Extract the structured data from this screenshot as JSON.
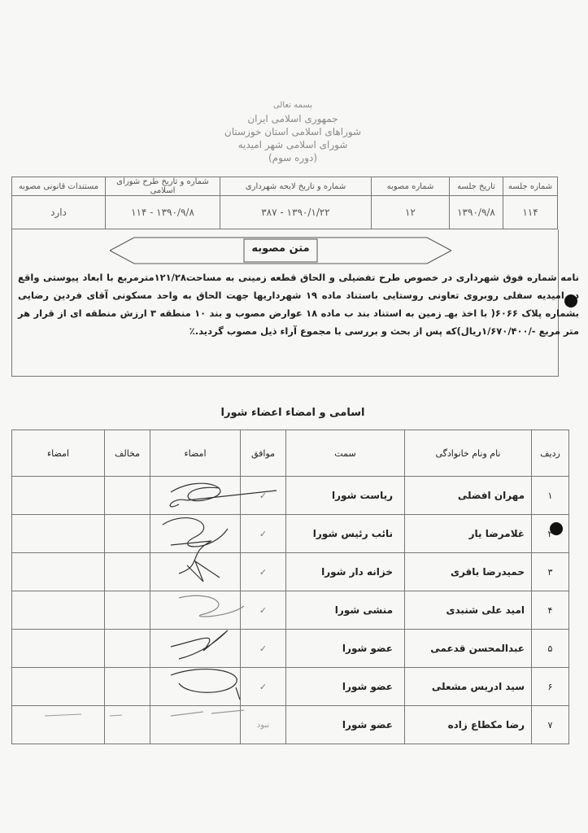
{
  "letterhead": {
    "basmala": "بسمه تعالی",
    "country": "جمهوری اسلامی ایران",
    "province_council": "شوراهای اسلامی استان خوزستان",
    "city_council": "شورای اسلامی شهر امیدیه",
    "term": "(دوره سوم)"
  },
  "session_table": {
    "headers": [
      "شماره جلسه",
      "تاریخ جلسه",
      "شماره مصوبه",
      "شماره و تاریخ لایحه شهرداری",
      "شماره و تاریخ طرح شورای اسلامی",
      "مستندات قانونی مصوبه"
    ],
    "values": [
      "۱۱۴",
      "۱۳۹۰/۹/۸",
      "۱۲",
      "۱۳۹۰/۱/۲۲ - ۳۸۷",
      "۱۳۹۰/۹/۸ - ۱۱۴",
      "دارد"
    ]
  },
  "resolution": {
    "banner": "متن مصوبه",
    "text": "نامه شماره فوق شهرداری در خصوص طرح تفضیلی و الحاق قطعه زمینی به مساحت۱۲۱/۲۸مترمربع با ابعاد پیوستی واقع در امیدیه سفلی روبروی تعاونی روستایی باستناد ماده ۱۹ شهرداریها جهت الحاق به واحد مسکونی آقای فردین رضایی بشماره پلاک ۶۰۶۶( با اخذ بهـ زمین به استناد بند ب ماده ۱۸ عوارض مصوب و بند ۱۰ منطقه ۳ ارزش منطقه ای از قرار هر متر مربع -/۱/۶۷۰/۴۰۰ریال)که پس از بحث و بررسی با مجموع آراء ذیل مصوب گردید.٪"
  },
  "members": {
    "title": "اسامی و امضاء اعضاء شورا",
    "headers": [
      "ردیف",
      "نام ونام خانوادگی",
      "سمت",
      "موافق",
      "امضاء",
      "مخالف",
      "امضاء"
    ],
    "rows": [
      {
        "no": "۱",
        "name": "مهران افضلی",
        "position": "ریاست شورا",
        "agree": "✓"
      },
      {
        "no": "۲",
        "name": "غلامرضا یار",
        "position": "نائب رئیس شورا",
        "agree": "✓"
      },
      {
        "no": "۳",
        "name": "حمیدرضا باقری",
        "position": "خزانه دار شورا",
        "agree": "✓"
      },
      {
        "no": "۴",
        "name": "امید علی شنبدی",
        "position": "منشی شورا",
        "agree": "✓"
      },
      {
        "no": "۵",
        "name": "عبدالمحسن قدعمی",
        "position": "عضو شورا",
        "agree": "✓"
      },
      {
        "no": "۶",
        "name": "سید ادریس مشعلی",
        "position": "عضو شورا",
        "agree": "✓"
      },
      {
        "no": "۷",
        "name": "رضا مکطاع زاده",
        "position": "عضو شورا",
        "agree": "نبود"
      }
    ]
  }
}
